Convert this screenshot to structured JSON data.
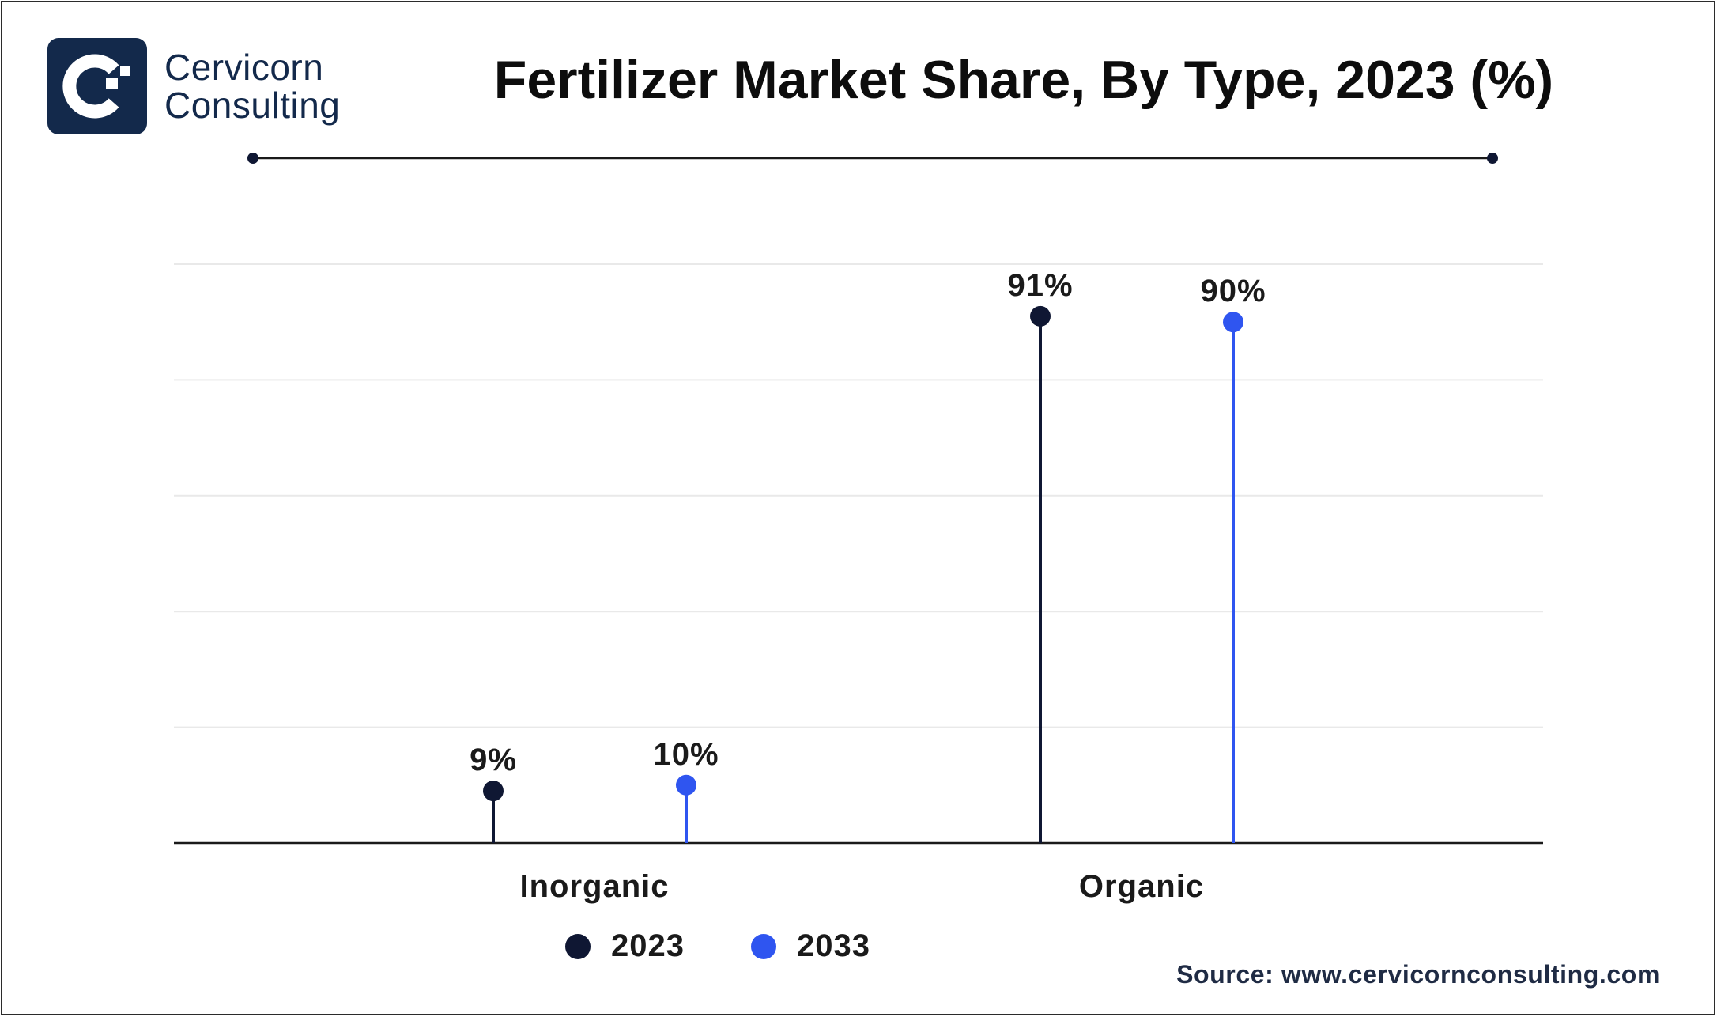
{
  "brand": {
    "line1": "Cervicorn",
    "line2": "Consulting",
    "color": "#13294b"
  },
  "title": "Fertilizer Market Share, By Type, 2023 (%)",
  "source": "Source: www.cervicornconsulting.com",
  "chart_data": {
    "type": "lollipop",
    "title": "Fertilizer Market Share, By Type, 2023 (%)",
    "categories": [
      "Inorganic",
      "Organic"
    ],
    "series": [
      {
        "name": "2023",
        "color": "#0f1733",
        "values": [
          9,
          91
        ],
        "labels": [
          "9%",
          "91%"
        ]
      },
      {
        "name": "2033",
        "color": "#2f55f0",
        "values": [
          10,
          90
        ],
        "labels": [
          "10%",
          "90%"
        ]
      }
    ],
    "ylim": [
      0,
      100
    ],
    "grid": true,
    "legend": "bottom-center"
  }
}
